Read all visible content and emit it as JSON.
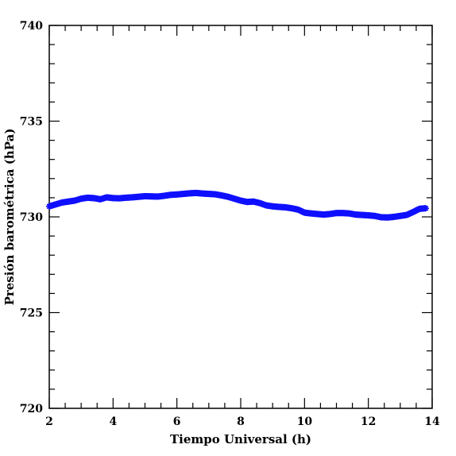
{
  "chart_data": {
    "type": "scatter",
    "xlabel": "Tiempo Universal (h)",
    "ylabel": "Presión barométrica (hPa)",
    "xlim": [
      2,
      14
    ],
    "ylim": [
      720,
      740
    ],
    "x_major_ticks": [
      2,
      4,
      6,
      8,
      10,
      12,
      14
    ],
    "x_minor_step": 0.5,
    "y_major_ticks": [
      720,
      725,
      730,
      735,
      740
    ],
    "y_minor_step": 1,
    "x_tick_labels": [
      "2",
      "4",
      "6",
      "8",
      "10",
      "12",
      "14"
    ],
    "y_tick_labels": [
      "720",
      "725",
      "730",
      "735",
      "740"
    ],
    "grid": false,
    "marker_color": "#1010ff",
    "series": [
      {
        "x": [
          2.0,
          2.2,
          2.4,
          2.6,
          2.8,
          3.0,
          3.2,
          3.4,
          3.6,
          3.8,
          4.0,
          4.2,
          4.4,
          4.6,
          4.8,
          5.0,
          5.2,
          5.4,
          5.6,
          5.8,
          6.0,
          6.2,
          6.4,
          6.6,
          6.8,
          7.0,
          7.2,
          7.4,
          7.6,
          7.8,
          8.0,
          8.2,
          8.4,
          8.6,
          8.8,
          9.0,
          9.2,
          9.4,
          9.6,
          9.8,
          10.0,
          10.2,
          10.4,
          10.6,
          10.8,
          11.0,
          11.2,
          11.4,
          11.6,
          11.8,
          12.0,
          12.2,
          12.4,
          12.6,
          12.8,
          13.0,
          13.2,
          13.4,
          13.6,
          13.8
        ],
        "y": [
          730.55,
          730.65,
          730.75,
          730.8,
          730.85,
          730.95,
          731.0,
          730.98,
          730.92,
          731.02,
          730.98,
          730.97,
          731.0,
          731.02,
          731.05,
          731.08,
          731.07,
          731.06,
          731.1,
          731.15,
          731.17,
          731.2,
          731.23,
          731.25,
          731.22,
          731.2,
          731.18,
          731.12,
          731.05,
          730.95,
          730.85,
          730.78,
          730.8,
          730.72,
          730.6,
          730.55,
          730.52,
          730.5,
          730.45,
          730.38,
          730.22,
          730.18,
          730.15,
          730.12,
          730.15,
          730.2,
          730.2,
          730.18,
          730.12,
          730.1,
          730.08,
          730.05,
          729.98,
          729.97,
          730.0,
          730.05,
          730.1,
          730.25,
          730.42,
          730.45
        ]
      }
    ]
  }
}
